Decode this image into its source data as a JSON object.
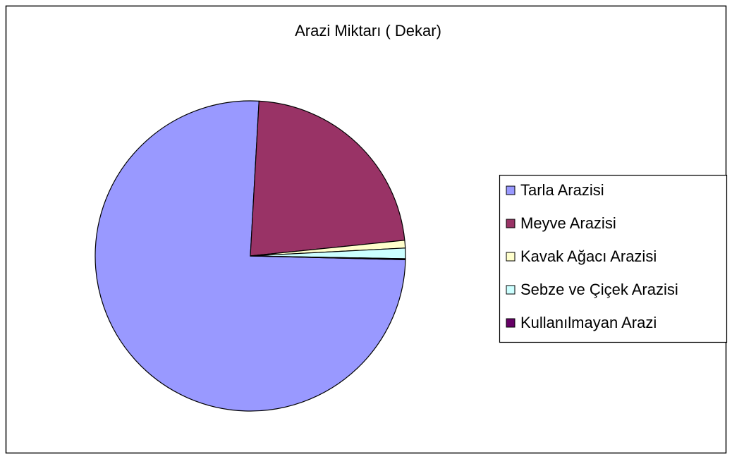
{
  "chart_data": {
    "type": "pie",
    "title": "Arazi Miktarı ( Dekar)",
    "categories": [
      "Tarla Arazisi",
      "Meyve Arazisi",
      "Kavak Ağacı Arazisi",
      "Sebze ve Çiçek Arazisi",
      "Kullanılmayan Arazi"
    ],
    "values": [
      75.5,
      22.5,
      0.8,
      1.1,
      0.1
    ],
    "colors": [
      "#9999ff",
      "#993366",
      "#ffffcc",
      "#ccffff",
      "#660066"
    ],
    "legend": "right"
  }
}
